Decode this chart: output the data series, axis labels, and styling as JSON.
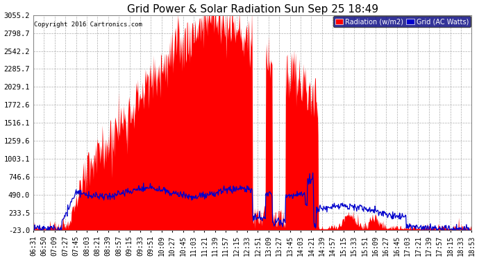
{
  "title": "Grid Power & Solar Radiation Sun Sep 25 18:49",
  "copyright": "Copyright 2016 Cartronics.com",
  "legend_radiation": "Radiation (w/m2)",
  "legend_grid": "Grid (AC Watts)",
  "yticks": [
    3055.2,
    2798.7,
    2542.2,
    2285.7,
    2029.1,
    1772.6,
    1516.1,
    1259.6,
    1003.1,
    746.6,
    490.0,
    233.5,
    -23.0
  ],
  "ymin": -23.0,
  "ymax": 3055.2,
  "background_color": "#ffffff",
  "plot_bg_color": "#ffffff",
  "grid_color": "#999999",
  "radiation_color": "#ff0000",
  "grid_power_color": "#0000cc",
  "title_fontsize": 11,
  "tick_fontsize": 7.5,
  "xtick_labels": [
    "06:31",
    "06:50",
    "07:09",
    "07:27",
    "07:45",
    "08:03",
    "08:21",
    "08:39",
    "08:57",
    "09:15",
    "09:33",
    "09:51",
    "10:09",
    "10:27",
    "10:45",
    "11:03",
    "11:21",
    "11:39",
    "11:57",
    "12:15",
    "12:33",
    "12:51",
    "13:09",
    "13:27",
    "13:45",
    "14:03",
    "14:21",
    "14:39",
    "14:57",
    "15:15",
    "15:33",
    "15:51",
    "16:09",
    "16:27",
    "16:45",
    "17:03",
    "17:21",
    "17:39",
    "17:57",
    "18:15",
    "18:33",
    "18:53"
  ],
  "n_points": 840
}
